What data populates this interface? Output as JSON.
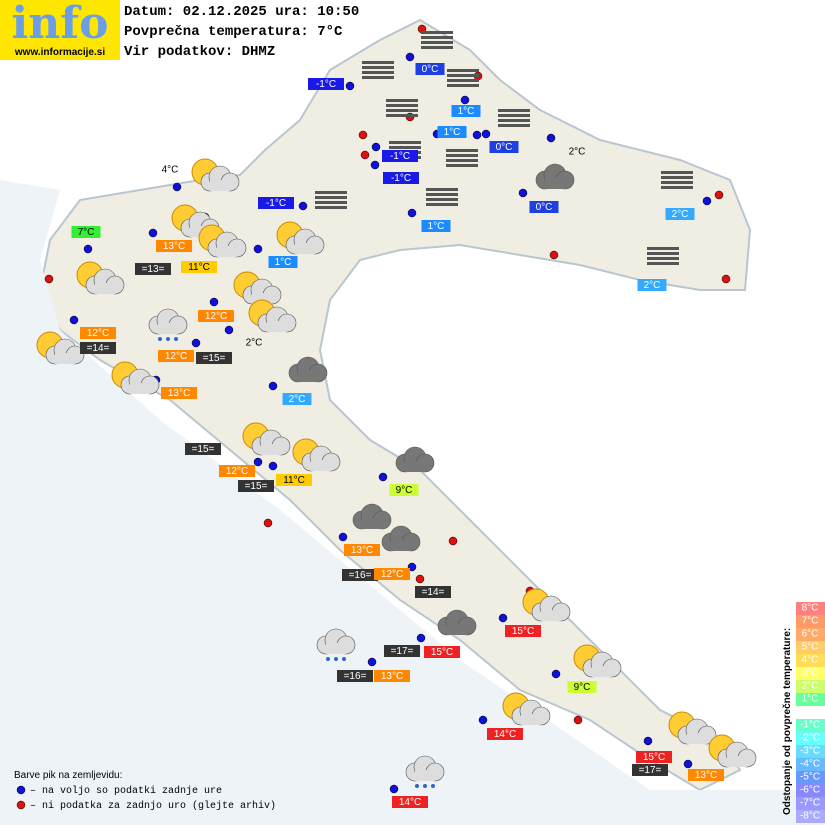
{
  "header": {
    "logo": "info",
    "url": "www.informacije.si",
    "lines": [
      "Datum: 02.12.2025 ura: 10:50",
      "Povprečna temperatura: 7°C",
      "Vir podatkov: DHMZ"
    ]
  },
  "stations": [
    {
      "label": "0°C",
      "color": "#1f3fe0"
    },
    {
      "label": "-1°C",
      "color": "#1a1ae6"
    },
    {
      "label": "1°C",
      "color": "#1a8cff"
    },
    {
      "label": "1°C",
      "color": "#1a8cff"
    },
    {
      "label": "0°C",
      "color": "#1f3fe0"
    },
    {
      "label": "-1°C",
      "color": "#1a1ae6"
    },
    {
      "label": "-1°C",
      "color": "#1a1ae6"
    },
    {
      "label": "0°C",
      "color": "#1f3fe0"
    },
    {
      "label": "-1°C",
      "color": "#1a1ae6"
    },
    {
      "label": "2°C",
      "color": "#33aaff"
    },
    {
      "label": "1°C",
      "color": "#1a8cff"
    },
    {
      "label": "7°C",
      "color": "#33ee33"
    },
    {
      "label": "13°C",
      "color": "#ff8800"
    },
    {
      "label": "1°C",
      "color": "#1a8cff"
    },
    {
      "label": "=13=",
      "color": "#333333"
    },
    {
      "label": "11°C",
      "color": "#ffcc00"
    },
    {
      "label": "2°C",
      "color": "#33aaff"
    },
    {
      "label": "12°C",
      "color": "#ff8800"
    },
    {
      "label": "12°C",
      "color": "#ff8800"
    },
    {
      "label": "=14=",
      "color": "#333333"
    },
    {
      "label": "12°C",
      "color": "#ff8800"
    },
    {
      "label": "=15=",
      "color": "#333333"
    },
    {
      "label": "13°C",
      "color": "#ff8800"
    },
    {
      "label": "2°C",
      "color": "#33aaff"
    },
    {
      "label": "=15=",
      "color": "#333333"
    },
    {
      "label": "12°C",
      "color": "#ff8800"
    },
    {
      "label": "11°C",
      "color": "#ffcc00"
    },
    {
      "label": "=15=",
      "color": "#333333"
    },
    {
      "label": "9°C",
      "color": "#ccff33"
    },
    {
      "label": "13°C",
      "color": "#ff8800"
    },
    {
      "label": "=16=",
      "color": "#333333"
    },
    {
      "label": "12°C",
      "color": "#ff8800"
    },
    {
      "label": "=14=",
      "color": "#333333"
    },
    {
      "label": "15°C",
      "color": "#ee2222"
    },
    {
      "label": "=17=",
      "color": "#333333"
    },
    {
      "label": "15°C",
      "color": "#ee2222"
    },
    {
      "label": "9°C",
      "color": "#ccff33"
    },
    {
      "label": "=16=",
      "color": "#333333"
    },
    {
      "label": "13°C",
      "color": "#ff8800"
    },
    {
      "label": "14°C",
      "color": "#ee2222"
    },
    {
      "label": "15°C",
      "color": "#ee2222"
    },
    {
      "label": "=17=",
      "color": "#333333"
    },
    {
      "label": "13°C",
      "color": "#ff8800"
    },
    {
      "label": "14°C",
      "color": "#ee2222"
    }
  ],
  "plain_labels": [
    "2°C",
    "4°C",
    "2°C"
  ],
  "legend": {
    "title": "Barve pik na zemljevidu:",
    "items": [
      {
        "text": "– na voljo so podatki zadnje ure",
        "color": "#1010dd"
      },
      {
        "text": "– ni podatka za zadnjo uro (glejte arhiv)",
        "color": "#dd1010"
      }
    ]
  },
  "scale": {
    "title": "Odstopanje od povprečne temperature:",
    "steps": [
      {
        "label": "8°C",
        "color": "#ff8080"
      },
      {
        "label": "7°C",
        "color": "#ff9966"
      },
      {
        "label": "6°C",
        "color": "#ffaa66"
      },
      {
        "label": "5°C",
        "color": "#ffcc66"
      },
      {
        "label": "4°C",
        "color": "#ffdd55"
      },
      {
        "label": "3°C",
        "color": "#ffff66"
      },
      {
        "label": "2°C",
        "color": "#ccff66"
      },
      {
        "label": "1°C",
        "color": "#66ff99"
      },
      {
        "label": "-1°C",
        "color": "#66ffcc"
      },
      {
        "label": "-2°C",
        "color": "#66ffff"
      },
      {
        "label": "-3°C",
        "color": "#66ddff"
      },
      {
        "label": "-4°C",
        "color": "#66bbff"
      },
      {
        "label": "-5°C",
        "color": "#6699ff"
      },
      {
        "label": "-6°C",
        "color": "#8888ff"
      },
      {
        "label": "-7°C",
        "color": "#9999ff"
      },
      {
        "label": "-8°C",
        "color": "#aaaaff"
      }
    ]
  }
}
